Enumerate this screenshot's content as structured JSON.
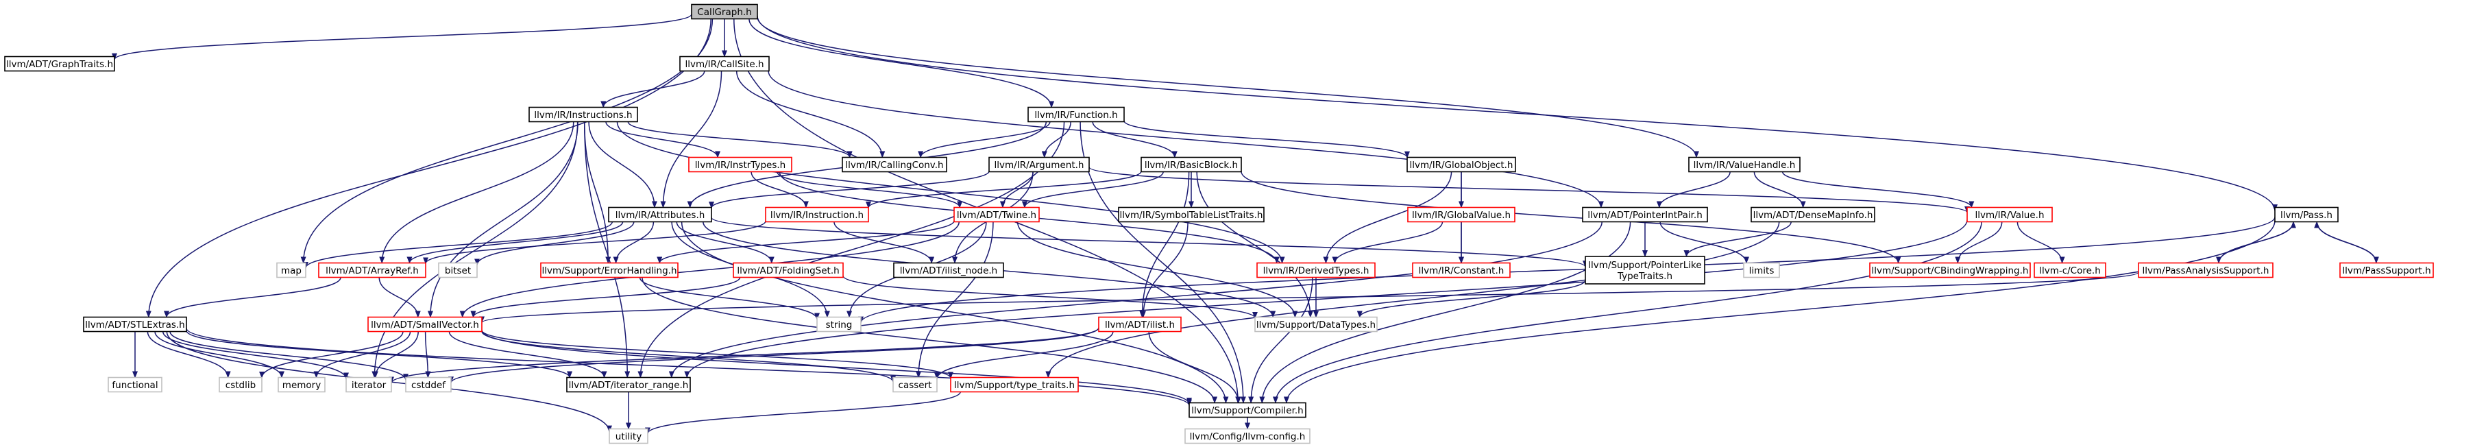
{
  "diagram": {
    "colors": {
      "edge": "#191970",
      "root_fill": "#bfbfbf",
      "border_black": "#000000",
      "border_red": "#ff0000",
      "border_gray": "#bfbfbf",
      "text": "#000000"
    },
    "nodes": [
      {
        "id": "callgraph",
        "label": "CallGraph.h",
        "style": "root"
      },
      {
        "id": "graphtraits",
        "label": "llvm/ADT/GraphTraits.h",
        "style": "black"
      },
      {
        "id": "callsite",
        "label": "llvm/IR/CallSite.h",
        "style": "black"
      },
      {
        "id": "stlextras",
        "label": "llvm/ADT/STLExtras.h",
        "style": "black"
      },
      {
        "id": "map",
        "label": "map",
        "style": "gray"
      },
      {
        "id": "function",
        "label": "llvm/IR/Function.h",
        "style": "black"
      },
      {
        "id": "valuehandle",
        "label": "llvm/IR/ValueHandle.h",
        "style": "black"
      },
      {
        "id": "pass",
        "label": "llvm/Pass.h",
        "style": "black"
      },
      {
        "id": "compiler",
        "label": "llvm/Support/Compiler.h",
        "style": "black"
      },
      {
        "id": "instructions",
        "label": "llvm/IR/Instructions.h",
        "style": "black"
      },
      {
        "id": "callingconv",
        "label": "llvm/IR/CallingConv.h",
        "style": "black"
      },
      {
        "id": "instrtypes",
        "label": "llvm/IR/InstrTypes.h",
        "style": "red"
      },
      {
        "id": "argument",
        "label": "llvm/IR/Argument.h",
        "style": "black"
      },
      {
        "id": "basicblock",
        "label": "llvm/IR/BasicBlock.h",
        "style": "black"
      },
      {
        "id": "globalobject",
        "label": "llvm/IR/GlobalObject.h",
        "style": "black"
      },
      {
        "id": "attributes",
        "label": "llvm/IR/Attributes.h",
        "style": "black"
      },
      {
        "id": "instruction",
        "label": "llvm/IR/Instruction.h",
        "style": "red"
      },
      {
        "id": "twine",
        "label": "llvm/ADT/Twine.h",
        "style": "red"
      },
      {
        "id": "symtablelisttraits",
        "label": "llvm/IR/SymbolTableListTraits.h",
        "style": "black"
      },
      {
        "id": "globalvalue",
        "label": "llvm/IR/GlobalValue.h",
        "style": "red"
      },
      {
        "id": "pointerintpair",
        "label": "llvm/ADT/PointerIntPair.h",
        "style": "black"
      },
      {
        "id": "densemapinfo",
        "label": "llvm/ADT/DenseMapInfo.h",
        "style": "black"
      },
      {
        "id": "value",
        "label": "llvm/IR/Value.h",
        "style": "red"
      },
      {
        "id": "arrayref",
        "label": "llvm/ADT/ArrayRef.h",
        "style": "red"
      },
      {
        "id": "bitset",
        "label": "bitset",
        "style": "gray"
      },
      {
        "id": "errorhandling",
        "label": "llvm/Support/ErrorHandling.h",
        "style": "red"
      },
      {
        "id": "foldingset",
        "label": "llvm/ADT/FoldingSet.h",
        "style": "red"
      },
      {
        "id": "ilistnode",
        "label": "llvm/ADT/ilist_node.h",
        "style": "black"
      },
      {
        "id": "derivedtypes",
        "label": "llvm/IR/DerivedTypes.h",
        "style": "red"
      },
      {
        "id": "constant",
        "label": "llvm/IR/Constant.h",
        "style": "red"
      },
      {
        "id": "pointerliketypetraits",
        "label": [
          "llvm/Support/PointerLike",
          "TypeTraits.h"
        ],
        "style": "black"
      },
      {
        "id": "limits",
        "label": "limits",
        "style": "gray"
      },
      {
        "id": "cbindingwrapping",
        "label": "llvm/Support/CBindingWrapping.h",
        "style": "red"
      },
      {
        "id": "llvmccore",
        "label": "llvm-c/Core.h",
        "style": "red"
      },
      {
        "id": "passanalysissupport",
        "label": "llvm/PassAnalysisSupport.h",
        "style": "red"
      },
      {
        "id": "passsupport",
        "label": "llvm/PassSupport.h",
        "style": "red"
      },
      {
        "id": "smallvector",
        "label": "llvm/ADT/SmallVector.h",
        "style": "red"
      },
      {
        "id": "string",
        "label": "string",
        "style": "gray"
      },
      {
        "id": "datatypes",
        "label": "llvm/Support/DataTypes.h",
        "style": "gray"
      },
      {
        "id": "ilist",
        "label": "llvm/ADT/ilist.h",
        "style": "red"
      },
      {
        "id": "functional",
        "label": "functional",
        "style": "gray"
      },
      {
        "id": "cstdlib",
        "label": "cstdlib",
        "style": "gray"
      },
      {
        "id": "memory",
        "label": "memory",
        "style": "gray"
      },
      {
        "id": "iterator",
        "label": "iterator",
        "style": "gray"
      },
      {
        "id": "cstddef",
        "label": "cstddef",
        "style": "gray"
      },
      {
        "id": "iteratorrange",
        "label": "llvm/ADT/iterator_range.h",
        "style": "black"
      },
      {
        "id": "cassert",
        "label": "cassert",
        "style": "gray"
      },
      {
        "id": "typetraits",
        "label": "llvm/Support/type_traits.h",
        "style": "red"
      },
      {
        "id": "utility",
        "label": "utility",
        "style": "gray"
      },
      {
        "id": "llvmconfig",
        "label": "llvm/Config/llvm-config.h",
        "style": "gray"
      }
    ],
    "edges": [
      [
        "callgraph",
        "graphtraits"
      ],
      [
        "callgraph",
        "callsite"
      ],
      [
        "callgraph",
        "stlextras"
      ],
      [
        "callgraph",
        "map"
      ],
      [
        "callgraph",
        "function"
      ],
      [
        "callgraph",
        "valuehandle"
      ],
      [
        "callgraph",
        "pass"
      ],
      [
        "callgraph",
        "compiler"
      ],
      [
        "callsite",
        "instructions"
      ],
      [
        "callsite",
        "callingconv"
      ],
      [
        "callsite",
        "attributes"
      ],
      [
        "callsite",
        "pointerintpair"
      ],
      [
        "function",
        "callingconv"
      ],
      [
        "function",
        "argument"
      ],
      [
        "function",
        "basicblock"
      ],
      [
        "function",
        "globalobject"
      ],
      [
        "function",
        "attributes"
      ],
      [
        "function",
        "compiler"
      ],
      [
        "function",
        "iteratorrange"
      ],
      [
        "instructions",
        "callingconv"
      ],
      [
        "instructions",
        "instrtypes"
      ],
      [
        "instructions",
        "attributes"
      ],
      [
        "instructions",
        "arrayref"
      ],
      [
        "instructions",
        "errorhandling"
      ],
      [
        "instructions",
        "smallvector"
      ],
      [
        "instructions",
        "iterator"
      ],
      [
        "instructions",
        "derivedtypes"
      ],
      [
        "instructions",
        "iteratorrange"
      ],
      [
        "instrtypes",
        "instruction"
      ],
      [
        "instrtypes",
        "twine"
      ],
      [
        "instrtypes",
        "derivedtypes"
      ],
      [
        "argument",
        "attributes"
      ],
      [
        "argument",
        "twine"
      ],
      [
        "argument",
        "ilistnode"
      ],
      [
        "argument",
        "value"
      ],
      [
        "basicblock",
        "instruction"
      ],
      [
        "basicblock",
        "twine"
      ],
      [
        "basicblock",
        "symtablelisttraits"
      ],
      [
        "basicblock",
        "datatypes"
      ],
      [
        "basicblock",
        "ilist"
      ],
      [
        "basicblock",
        "cbindingwrapping"
      ],
      [
        "globalobject",
        "globalvalue"
      ],
      [
        "globalobject",
        "derivedtypes"
      ],
      [
        "globalobject",
        "constant"
      ],
      [
        "attributes",
        "arrayref"
      ],
      [
        "attributes",
        "foldingset"
      ],
      [
        "attributes",
        "pointerliketypetraits"
      ],
      [
        "attributes",
        "map"
      ],
      [
        "attributes",
        "bitset"
      ],
      [
        "attributes",
        "string"
      ],
      [
        "attributes",
        "datatypes"
      ],
      [
        "attributes",
        "compiler"
      ],
      [
        "attributes",
        "errorhandling"
      ],
      [
        "instruction",
        "arrayref"
      ],
      [
        "instruction",
        "ilistnode"
      ],
      [
        "twine",
        "errorhandling"
      ],
      [
        "twine",
        "string"
      ],
      [
        "twine",
        "cassert"
      ],
      [
        "twine",
        "datatypes"
      ],
      [
        "twine",
        "smallvector"
      ],
      [
        "symtablelisttraits",
        "ilist"
      ],
      [
        "globalvalue",
        "derivedtypes"
      ],
      [
        "globalvalue",
        "constant"
      ],
      [
        "valuehandle",
        "pointerintpair"
      ],
      [
        "valuehandle",
        "densemapinfo"
      ],
      [
        "valuehandle",
        "value"
      ],
      [
        "pointerintpair",
        "pointerliketypetraits"
      ],
      [
        "pointerintpair",
        "limits"
      ],
      [
        "pointerintpair",
        "compiler"
      ],
      [
        "pointerintpair",
        "iteratorrange"
      ],
      [
        "densemapinfo",
        "pointerliketypetraits"
      ],
      [
        "densemapinfo",
        "typetraits"
      ],
      [
        "value",
        "cbindingwrapping"
      ],
      [
        "value",
        "llvmccore"
      ],
      [
        "value",
        "compiler"
      ],
      [
        "value",
        "iteratorrange"
      ],
      [
        "pass",
        "passanalysissupport"
      ],
      [
        "pass",
        "passsupport"
      ],
      [
        "pass",
        "string"
      ],
      [
        "pass",
        "compiler"
      ],
      [
        "passanalysissupport",
        "pass"
      ],
      [
        "passanalysissupport",
        "smallvector"
      ],
      [
        "passsupport",
        "pass"
      ],
      [
        "arrayref",
        "smallvector"
      ],
      [
        "arrayref",
        "stlextras"
      ],
      [
        "errorhandling",
        "string"
      ],
      [
        "errorhandling",
        "compiler"
      ],
      [
        "foldingset",
        "smallvector"
      ],
      [
        "foldingset",
        "datatypes"
      ],
      [
        "derivedtypes",
        "datatypes"
      ],
      [
        "derivedtypes",
        "compiler"
      ],
      [
        "pointerliketypetraits",
        "datatypes"
      ],
      [
        "stlextras",
        "functional"
      ],
      [
        "stlextras",
        "cstdlib"
      ],
      [
        "stlextras",
        "memory"
      ],
      [
        "stlextras",
        "iterator"
      ],
      [
        "stlextras",
        "cstddef"
      ],
      [
        "stlextras",
        "iteratorrange"
      ],
      [
        "stlextras",
        "utility"
      ],
      [
        "stlextras",
        "compiler"
      ],
      [
        "smallvector",
        "iteratorrange"
      ],
      [
        "smallvector",
        "cstddef"
      ],
      [
        "smallvector",
        "iterator"
      ],
      [
        "smallvector",
        "cstdlib"
      ],
      [
        "smallvector",
        "memory"
      ],
      [
        "smallvector",
        "cassert"
      ],
      [
        "smallvector",
        "typetraits"
      ],
      [
        "smallvector",
        "compiler"
      ],
      [
        "ilist",
        "iterator"
      ],
      [
        "ilist",
        "cstddef"
      ],
      [
        "ilist",
        "cassert"
      ],
      [
        "ilist",
        "compiler"
      ],
      [
        "iteratorrange",
        "utility"
      ],
      [
        "typetraits",
        "utility"
      ],
      [
        "compiler",
        "llvmconfig"
      ]
    ]
  }
}
